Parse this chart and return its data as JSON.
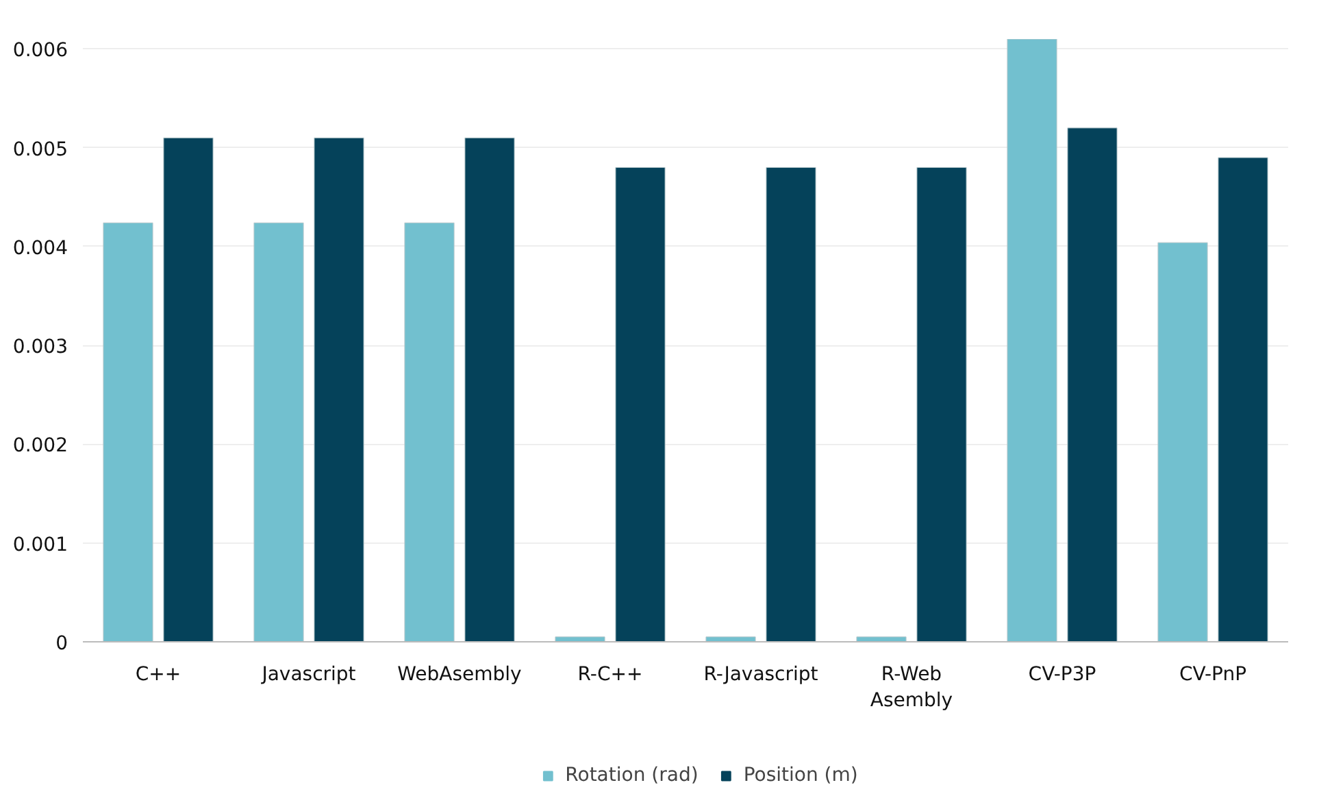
{
  "chart_data": {
    "type": "bar",
    "categories": [
      "C++",
      "Javascript",
      "WebAsembly",
      "R-C++",
      "R-Javascript",
      "R-Web\nAsembly",
      "CV-P3P",
      "CV-PnP"
    ],
    "series": [
      {
        "name": "Rotation (rad)",
        "color": "#72c0cf",
        "values": [
          0.00424,
          0.00424,
          0.00424,
          5e-05,
          5e-05,
          5e-05,
          0.0061,
          0.00404
        ]
      },
      {
        "name": "Position (m)",
        "color": "#05425a",
        "values": [
          0.0051,
          0.0051,
          0.0051,
          0.0048,
          0.0048,
          0.0048,
          0.0052,
          0.0049
        ]
      }
    ],
    "ylim": [
      0,
      0.0061
    ],
    "yticks": [
      0,
      0.001,
      0.002,
      0.003,
      0.004,
      0.005,
      0.006
    ],
    "grid": "y",
    "legend": "bottom"
  }
}
